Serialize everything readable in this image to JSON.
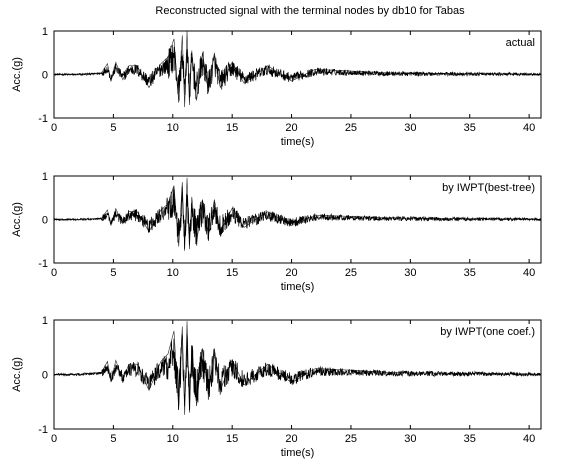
{
  "figure_title": "Reconstructed signal with the terminal nodes by db10 for Tabas",
  "chart_data": [
    {
      "type": "line",
      "title": "",
      "legend_text": "actual",
      "legend_position": "top-right",
      "xlabel": "time(s)",
      "ylabel": "Acc.(g)",
      "xlim": [
        0,
        41
      ],
      "ylim": [
        -1,
        1
      ],
      "xticks": [
        "0",
        "5",
        "10",
        "15",
        "20",
        "25",
        "30",
        "35",
        "40"
      ],
      "yticks": [
        "-1",
        "0",
        "1"
      ],
      "grid": false,
      "series": [
        {
          "color": "#000000",
          "x": [
            0,
            2,
            4,
            4.5,
            4.8,
            5.2,
            5.8,
            6.3,
            7,
            8,
            9,
            9.6,
            10.1,
            10.5,
            10.8,
            11.0,
            11.2,
            11.4,
            11.6,
            12.0,
            12.5,
            13.0,
            13.5,
            14.0,
            15,
            16,
            18,
            20,
            22,
            25,
            28,
            30,
            35,
            40,
            41
          ],
          "y": [
            0,
            0,
            0.04,
            0.25,
            -0.15,
            0.28,
            -0.12,
            0.2,
            0.2,
            -0.3,
            0.25,
            0.4,
            0.82,
            -0.65,
            0.9,
            -0.75,
            1.0,
            -0.7,
            0.55,
            -0.6,
            0.5,
            -0.4,
            0.5,
            -0.3,
            0.28,
            -0.2,
            0.2,
            -0.15,
            0.12,
            0.08,
            0.04,
            0.03,
            0.02,
            0.01,
            0
          ]
        }
      ]
    },
    {
      "type": "line",
      "title": "",
      "legend_text": "by IWPT(best-tree)",
      "legend_position": "top-right",
      "xlabel": "time(s)",
      "ylabel": "Acc.(g)",
      "xlim": [
        0,
        41
      ],
      "ylim": [
        -1,
        1
      ],
      "xticks": [
        "0",
        "5",
        "10",
        "15",
        "20",
        "25",
        "30",
        "35",
        "40"
      ],
      "yticks": [
        "-1",
        "0",
        "1"
      ],
      "grid": false,
      "series": [
        {
          "color": "#000000",
          "x": [
            0,
            2,
            4,
            4.5,
            4.8,
            5.2,
            5.8,
            6.3,
            7,
            8,
            9,
            9.6,
            10.1,
            10.5,
            10.8,
            11.0,
            11.2,
            11.4,
            11.6,
            12.0,
            12.5,
            13.0,
            13.5,
            14.0,
            15,
            16,
            18,
            20,
            22,
            25,
            28,
            30,
            35,
            40,
            41
          ],
          "y": [
            0,
            0,
            0.03,
            0.22,
            -0.13,
            0.25,
            -0.1,
            0.18,
            0.18,
            -0.28,
            0.22,
            0.36,
            0.78,
            -0.62,
            0.86,
            -0.72,
            0.96,
            -0.68,
            0.52,
            -0.56,
            0.46,
            -0.38,
            0.46,
            -0.28,
            0.26,
            -0.18,
            0.18,
            -0.14,
            0.1,
            0.07,
            0.04,
            0.03,
            0.02,
            0.01,
            0
          ]
        }
      ]
    },
    {
      "type": "line",
      "title": "",
      "legend_text": "by IWPT(one coef.)",
      "legend_position": "top-right",
      "xlabel": "time(s)",
      "ylabel": "Acc.(g)",
      "xlim": [
        0,
        41
      ],
      "ylim": [
        -1,
        1
      ],
      "xticks": [
        "0",
        "5",
        "10",
        "15",
        "20",
        "25",
        "30",
        "35",
        "40"
      ],
      "yticks": [
        "-1",
        "0",
        "1"
      ],
      "grid": false,
      "series": [
        {
          "color": "#000000",
          "x": [
            0,
            2,
            4,
            4.5,
            4.8,
            5.2,
            5.8,
            6.3,
            7,
            8,
            9,
            9.6,
            10.1,
            10.5,
            10.8,
            11.0,
            11.2,
            11.4,
            11.6,
            12.0,
            12.5,
            13.0,
            13.5,
            14.0,
            15,
            16,
            18,
            20,
            22,
            25,
            28,
            30,
            35,
            40,
            41
          ],
          "y": [
            0,
            0,
            0.04,
            0.24,
            -0.14,
            0.26,
            -0.11,
            0.19,
            0.19,
            -0.29,
            0.24,
            0.38,
            0.8,
            -0.64,
            0.88,
            -0.74,
            0.98,
            -0.7,
            0.54,
            -0.58,
            0.48,
            -0.39,
            0.48,
            -0.29,
            0.27,
            -0.19,
            0.19,
            -0.15,
            0.11,
            0.08,
            0.04,
            0.03,
            0.02,
            0.01,
            0
          ]
        }
      ]
    }
  ]
}
